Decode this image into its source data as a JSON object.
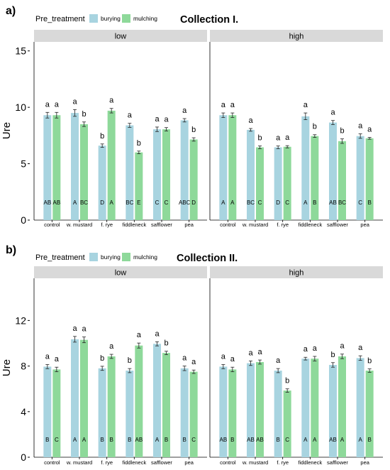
{
  "colors": {
    "burying": "#a8d4e0",
    "mulching": "#8ed99a",
    "strip": "#d9d9d9",
    "axis": "#000000"
  },
  "chart_data": [
    {
      "type": "bar",
      "panel_label": "a)",
      "title": "Collection I.",
      "legend_title": "Pre_treatment",
      "legend": [
        "burying",
        "mulching"
      ],
      "legend_position": "top",
      "ylabel": "Ure",
      "xlabel": "",
      "ylim": [
        0,
        15.8
      ],
      "yticks": [
        0,
        5,
        10,
        15
      ],
      "grid": false,
      "categories": [
        "control",
        "w. mustard",
        "f. rye",
        "fiddleneck",
        "safflower",
        "pea"
      ],
      "facets": [
        {
          "label": "low",
          "series": [
            {
              "name": "burying",
              "values": [
                9.3,
                9.5,
                6.6,
                8.4,
                8.05,
                8.85
              ],
              "errors": [
                0.25,
                0.3,
                0.15,
                0.18,
                0.2,
                0.15
              ],
              "letters_top": [
                "a",
                "a",
                "b",
                "a",
                "a",
                "a"
              ],
              "letters_bottom": [
                "AB",
                "A",
                "D",
                "BC",
                "C",
                "ABC"
              ]
            },
            {
              "name": "mulching",
              "values": [
                9.3,
                8.5,
                9.7,
                6.0,
                8.05,
                7.15
              ],
              "errors": [
                0.25,
                0.2,
                0.2,
                0.12,
                0.15,
                0.15
              ],
              "letters_top": [
                "a",
                "b",
                "a",
                "b",
                "a",
                "b"
              ],
              "letters_bottom": [
                "AB",
                "BC",
                "A",
                "E",
                "C",
                "D"
              ]
            }
          ]
        },
        {
          "label": "high",
          "series": [
            {
              "name": "burying",
              "values": [
                9.3,
                8.0,
                6.45,
                9.2,
                8.65,
                7.45
              ],
              "errors": [
                0.2,
                0.12,
                0.12,
                0.3,
                0.18,
                0.2
              ],
              "letters_top": [
                "a",
                "a",
                "a",
                "a",
                "a",
                "a"
              ],
              "letters_bottom": [
                "A",
                "BC",
                "D",
                "A",
                "AB",
                "C"
              ]
            },
            {
              "name": "mulching",
              "values": [
                9.3,
                6.45,
                6.5,
                7.45,
                7.0,
                7.25
              ],
              "errors": [
                0.2,
                0.12,
                0.1,
                0.12,
                0.2,
                0.08
              ],
              "letters_top": [
                "a",
                "b",
                "a",
                "b",
                "b",
                "a"
              ],
              "letters_bottom": [
                "A",
                "C",
                "C",
                "B",
                "BC",
                "B"
              ]
            }
          ]
        }
      ]
    },
    {
      "type": "bar",
      "panel_label": "b)",
      "title": "Collection II.",
      "legend_title": "Pre_treatment",
      "legend": [
        "burying",
        "mulching"
      ],
      "legend_position": "top",
      "ylabel": "Ure",
      "xlabel": "",
      "ylim": [
        0,
        15.7
      ],
      "yticks": [
        0,
        4,
        8,
        12
      ],
      "grid": false,
      "categories": [
        "control",
        "w. mustard",
        "f. rye",
        "fiddleneck",
        "safflower",
        "pea"
      ],
      "facets": [
        {
          "label": "low",
          "series": [
            {
              "name": "burying",
              "values": [
                7.95,
                10.35,
                7.8,
                7.6,
                9.95,
                7.8
              ],
              "errors": [
                0.18,
                0.25,
                0.18,
                0.18,
                0.18,
                0.2
              ],
              "letters_top": [
                "a",
                "a",
                "b",
                "b",
                "a",
                "a"
              ],
              "letters_bottom": [
                "B",
                "A",
                "B",
                "B",
                "A",
                "B"
              ]
            },
            {
              "name": "mulching",
              "values": [
                7.7,
                10.3,
                8.85,
                9.8,
                9.15,
                7.5
              ],
              "errors": [
                0.2,
                0.25,
                0.18,
                0.22,
                0.15,
                0.15
              ],
              "letters_top": [
                "a",
                "a",
                "a",
                "a",
                "b",
                "a"
              ],
              "letters_bottom": [
                "C",
                "A",
                "B",
                "AB",
                "B",
                "C"
              ]
            }
          ]
        },
        {
          "label": "high",
          "series": [
            {
              "name": "burying",
              "values": [
                7.95,
                8.25,
                7.6,
                8.65,
                8.1,
                8.7
              ],
              "errors": [
                0.18,
                0.2,
                0.18,
                0.12,
                0.2,
                0.2
              ],
              "letters_top": [
                "a",
                "a",
                "a",
                "a",
                "b",
                "a"
              ],
              "letters_bottom": [
                "AB",
                "AB",
                "B",
                "A",
                "AB",
                "A"
              ]
            },
            {
              "name": "mulching",
              "values": [
                7.7,
                8.35,
                5.85,
                8.65,
                8.85,
                7.6
              ],
              "errors": [
                0.2,
                0.18,
                0.15,
                0.2,
                0.2,
                0.15
              ],
              "letters_top": [
                "a",
                "a",
                "b",
                "a",
                "a",
                "b"
              ],
              "letters_bottom": [
                "B",
                "AB",
                "C",
                "A",
                "A",
                "B"
              ]
            }
          ]
        }
      ]
    }
  ]
}
